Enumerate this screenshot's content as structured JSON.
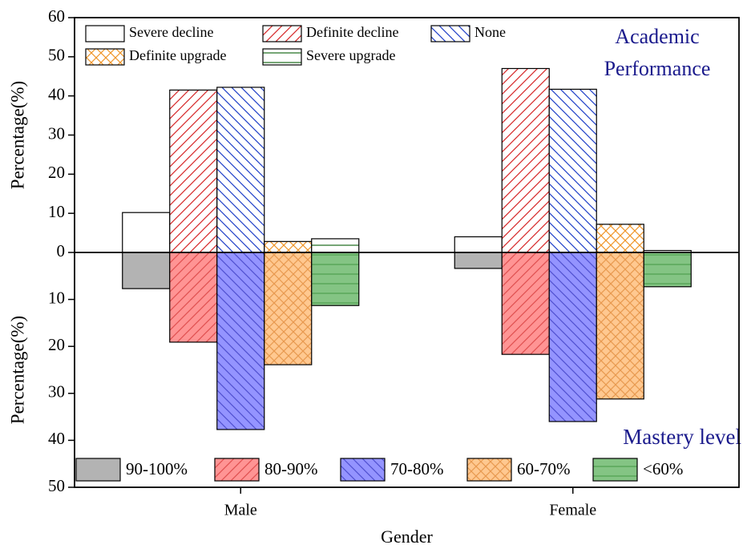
{
  "chart_data": [
    {
      "type": "bar",
      "title": [
        "Academic",
        "Performance"
      ],
      "ylabel": "Percentage(%)",
      "ylim": [
        0,
        60
      ],
      "yticks": [
        0,
        10,
        20,
        30,
        40,
        50,
        60
      ],
      "y_inverted": false,
      "series": [
        {
          "name": "Severe decline",
          "color": "#000000",
          "fill": "#ffffff",
          "hatch": "none",
          "values": [
            10.2,
            4.0
          ]
        },
        {
          "name": "Definite decline",
          "color": "#d62728",
          "fill": "#ffffff",
          "hatch": "/",
          "values": [
            41.5,
            47.0
          ]
        },
        {
          "name": "None",
          "color": "#1f3fc8",
          "fill": "#ffffff",
          "hatch": "\\",
          "values": [
            42.2,
            41.7
          ]
        },
        {
          "name": "Definite upgrade",
          "color": "#f0962a",
          "fill": "#ffffff",
          "hatch": "x",
          "values": [
            2.8,
            7.2
          ]
        },
        {
          "name": "Severe upgrade",
          "color": "#1a6b1a",
          "fill": "#ffffff",
          "hatch": "-",
          "values": [
            3.5,
            0.5
          ]
        }
      ]
    },
    {
      "type": "bar",
      "title": [
        "Mastery level"
      ],
      "ylabel": "Percentage(%)",
      "xlabel": "Gender",
      "categories": [
        "Male",
        "Female"
      ],
      "ylim": [
        0,
        50
      ],
      "yticks": [
        10,
        20,
        30,
        40,
        50
      ],
      "y_inverted": true,
      "series": [
        {
          "name": "90-100%",
          "color": "#808080",
          "fill": "#b3b3b3",
          "hatch": "none",
          "values": [
            7.7,
            3.4
          ]
        },
        {
          "name": "80-90%",
          "color": "#e05050",
          "fill": "#ff9494",
          "hatch": "/",
          "values": [
            19.1,
            21.7
          ]
        },
        {
          "name": "70-80%",
          "color": "#5050d0",
          "fill": "#9494ff",
          "hatch": "\\",
          "values": [
            37.7,
            36.0
          ]
        },
        {
          "name": "60-70%",
          "color": "#e89a50",
          "fill": "#ffc890",
          "hatch": "x",
          "values": [
            23.9,
            31.2
          ]
        },
        {
          "name": "<60%",
          "color": "#4f9f4f",
          "fill": "#84c484",
          "hatch": "-",
          "values": [
            11.3,
            7.3
          ]
        }
      ]
    }
  ]
}
